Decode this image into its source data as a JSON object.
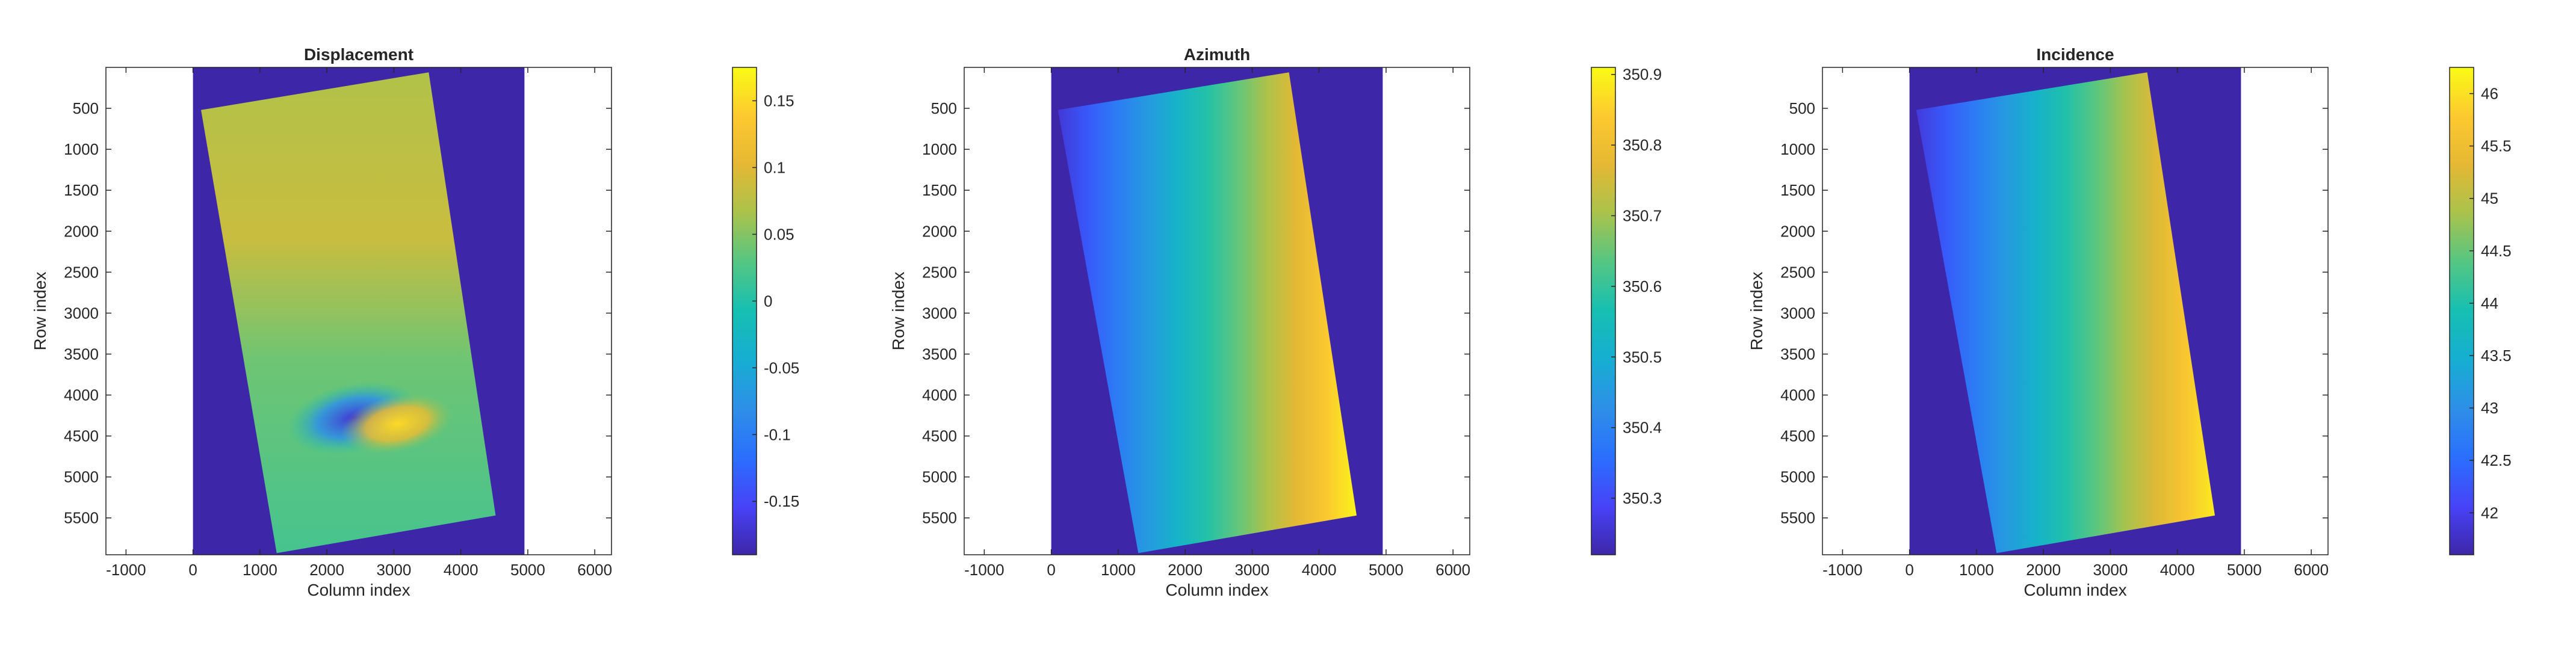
{
  "chart_data": [
    {
      "type": "heatmap",
      "title": "Displacement",
      "xlabel": "Column index",
      "ylabel": "Row index",
      "xlim": [
        -1300,
        6250
      ],
      "ylim": [
        5950,
        0
      ],
      "xticks": [
        -1000,
        0,
        1000,
        2000,
        3000,
        4000,
        5000,
        6000
      ],
      "yticks": [
        500,
        1000,
        1500,
        2000,
        2500,
        3000,
        3500,
        4000,
        4500,
        5000,
        5500
      ],
      "image_extent": {
        "x": [
          0,
          4950
        ],
        "y": [
          0,
          5950
        ]
      },
      "background_value": -0.19,
      "footprint": [
        [
          120,
          520
        ],
        [
          3520,
          60
        ],
        [
          4520,
          5470
        ],
        [
          1250,
          5930
        ]
      ],
      "gradient": "displacement",
      "colorbar": {
        "clim": [
          -0.19,
          0.175
        ],
        "ticks": [
          -0.15,
          -0.1,
          -0.05,
          0,
          0.05,
          0.1,
          0.15
        ],
        "labels": [
          "-0.15",
          "-0.1",
          "-0.05",
          "0",
          "0.05",
          "0.1",
          "0.15"
        ]
      }
    },
    {
      "type": "heatmap",
      "title": "Azimuth",
      "xlabel": "Column index",
      "ylabel": "Row index",
      "xlim": [
        -1300,
        6250
      ],
      "ylim": [
        5950,
        0
      ],
      "xticks": [
        -1000,
        0,
        1000,
        2000,
        3000,
        4000,
        5000,
        6000
      ],
      "yticks": [
        500,
        1000,
        1500,
        2000,
        2500,
        3000,
        3500,
        4000,
        4500,
        5000,
        5500
      ],
      "image_extent": {
        "x": [
          0,
          4950
        ],
        "y": [
          0,
          5950
        ]
      },
      "background_value": 350.22,
      "footprint": [
        [
          100,
          520
        ],
        [
          3550,
          60
        ],
        [
          4560,
          5470
        ],
        [
          1300,
          5930
        ]
      ],
      "gradient": "horizontal",
      "value_range": [
        350.26,
        350.9
      ],
      "colorbar": {
        "clim": [
          350.22,
          350.91
        ],
        "ticks": [
          350.3,
          350.4,
          350.5,
          350.6,
          350.7,
          350.8,
          350.9
        ],
        "labels": [
          "350.3",
          "350.4",
          "350.5",
          "350.6",
          "350.7",
          "350.8",
          "350.9"
        ]
      }
    },
    {
      "type": "heatmap",
      "title": "Incidence",
      "xlabel": "Column index",
      "ylabel": "Row index",
      "xlim": [
        -1300,
        6250
      ],
      "ylim": [
        5950,
        0
      ],
      "xticks": [
        -1000,
        0,
        1000,
        2000,
        3000,
        4000,
        5000,
        6000
      ],
      "yticks": [
        500,
        1000,
        1500,
        2000,
        2500,
        3000,
        3500,
        4000,
        4500,
        5000,
        5500
      ],
      "image_extent": {
        "x": [
          0,
          4950
        ],
        "y": [
          0,
          5950
        ]
      },
      "background_value": 41.6,
      "footprint": [
        [
          100,
          520
        ],
        [
          3550,
          60
        ],
        [
          4560,
          5470
        ],
        [
          1300,
          5930
        ]
      ],
      "gradient": "horizontal",
      "value_range": [
        41.9,
        46.1
      ],
      "colorbar": {
        "clim": [
          41.6,
          46.25
        ],
        "ticks": [
          42,
          42.5,
          43,
          43.5,
          44,
          44.5,
          45,
          45.5,
          46
        ],
        "labels": [
          "42",
          "42.5",
          "43",
          "43.5",
          "44",
          "44.5",
          "45",
          "45.5",
          "46"
        ]
      }
    }
  ],
  "colors": {
    "parula": [
      "#3e26a8",
      "#4743f8",
      "#2a6ffd",
      "#2e8fe8",
      "#16aed2",
      "#16bfb2",
      "#54c684",
      "#a9c34c",
      "#e5b834",
      "#fdc930",
      "#f9fb15"
    ],
    "background": "#3e26a8",
    "axis": "#262626"
  }
}
